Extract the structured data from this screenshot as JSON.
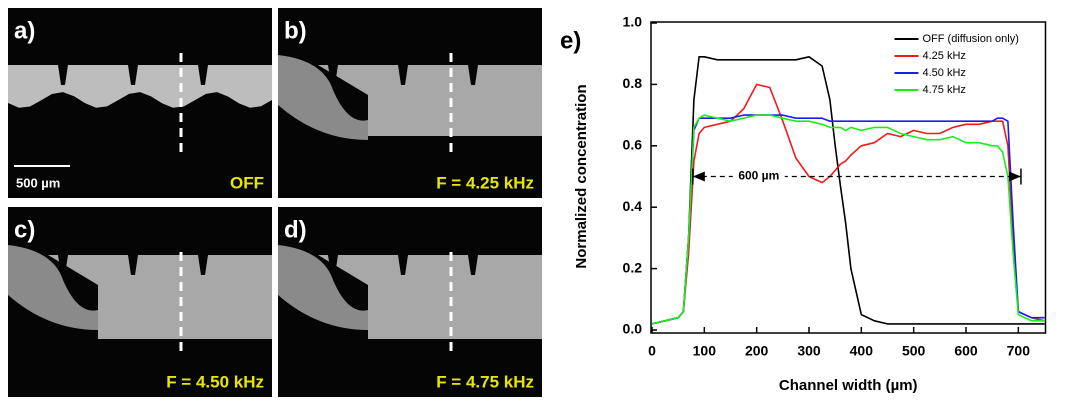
{
  "panels": [
    {
      "label": "a)",
      "caption": "OFF",
      "scale_bar": "500 µm"
    },
    {
      "label": "b)",
      "caption": "F = 4.25 kHz"
    },
    {
      "label": "c)",
      "caption": "F = 4.50 kHz"
    },
    {
      "label": "d)",
      "caption": "F = 4.75 kHz"
    }
  ],
  "chart_data": {
    "type": "line",
    "panel_label": "e)",
    "x_label": "Channel width (µm)",
    "y_label": "Normalized concentration",
    "x": [
      0,
      25,
      50,
      60,
      70,
      80,
      90,
      100,
      125,
      150,
      175,
      200,
      225,
      250,
      275,
      300,
      325,
      340,
      350,
      360,
      370,
      380,
      400,
      425,
      450,
      475,
      500,
      525,
      550,
      575,
      600,
      625,
      650,
      660,
      670,
      680,
      690,
      700,
      725,
      750
    ],
    "series": [
      {
        "name": "OFF (diffusion only)",
        "color": "#000000",
        "values": [
          0.02,
          0.03,
          0.04,
          0.06,
          0.3,
          0.75,
          0.89,
          0.89,
          0.88,
          0.88,
          0.88,
          0.88,
          0.88,
          0.88,
          0.88,
          0.89,
          0.86,
          0.75,
          0.6,
          0.47,
          0.35,
          0.2,
          0.05,
          0.03,
          0.02,
          0.02,
          0.02,
          0.02,
          0.02,
          0.02,
          0.02,
          0.02,
          0.02,
          0.02,
          0.02,
          0.02,
          0.02,
          0.02,
          0.02,
          0.02
        ]
      },
      {
        "name": "4.25 kHz",
        "color": "#ee1c1c",
        "values": [
          0.02,
          0.03,
          0.04,
          0.06,
          0.25,
          0.55,
          0.64,
          0.66,
          0.67,
          0.68,
          0.72,
          0.8,
          0.79,
          0.68,
          0.56,
          0.5,
          0.48,
          0.5,
          0.52,
          0.54,
          0.55,
          0.57,
          0.6,
          0.61,
          0.64,
          0.63,
          0.65,
          0.64,
          0.64,
          0.66,
          0.67,
          0.67,
          0.68,
          0.68,
          0.68,
          0.6,
          0.3,
          0.06,
          0.04,
          0.03
        ]
      },
      {
        "name": "4.50 kHz",
        "color": "#1c1cee",
        "values": [
          0.02,
          0.03,
          0.04,
          0.06,
          0.3,
          0.65,
          0.69,
          0.69,
          0.69,
          0.69,
          0.7,
          0.7,
          0.7,
          0.7,
          0.69,
          0.69,
          0.69,
          0.68,
          0.68,
          0.68,
          0.68,
          0.68,
          0.68,
          0.68,
          0.68,
          0.68,
          0.68,
          0.68,
          0.68,
          0.68,
          0.68,
          0.68,
          0.68,
          0.69,
          0.69,
          0.68,
          0.35,
          0.06,
          0.04,
          0.04
        ]
      },
      {
        "name": "4.75 kHz",
        "color": "#1cee1c",
        "values": [
          0.02,
          0.03,
          0.04,
          0.06,
          0.3,
          0.66,
          0.69,
          0.7,
          0.69,
          0.68,
          0.69,
          0.7,
          0.7,
          0.69,
          0.68,
          0.68,
          0.67,
          0.66,
          0.66,
          0.66,
          0.65,
          0.66,
          0.65,
          0.66,
          0.66,
          0.64,
          0.63,
          0.62,
          0.62,
          0.63,
          0.61,
          0.61,
          0.6,
          0.6,
          0.58,
          0.5,
          0.25,
          0.05,
          0.03,
          0.03
        ]
      }
    ],
    "annotations": [
      {
        "text": "600 µm",
        "x": [
          78,
          705
        ],
        "y": 0.5
      }
    ],
    "xlim": [
      0,
      750
    ],
    "xticks": [
      0,
      100,
      200,
      300,
      400,
      500,
      600,
      700
    ],
    "ylim": [
      0,
      1
    ],
    "yticks": [
      {
        "value": 0,
        "label": "0.0"
      },
      0.2,
      0.4,
      0.6,
      0.8,
      {
        "value": 1,
        "label": "1.0"
      }
    ],
    "legend": "upper right"
  }
}
